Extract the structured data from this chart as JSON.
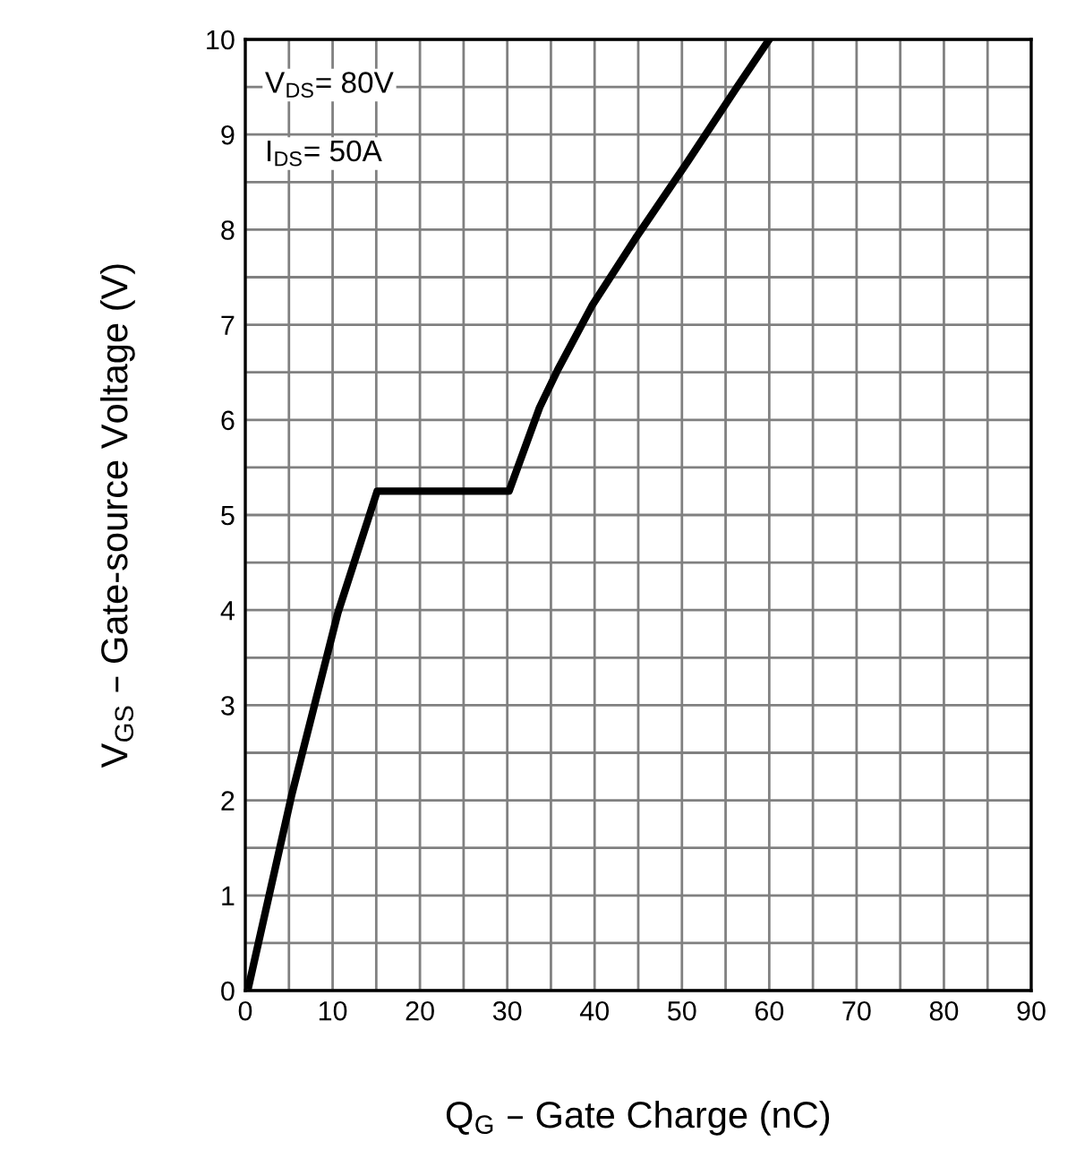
{
  "chart_data": {
    "type": "line",
    "xlabel": "Q$_{G}$ – Gate Charge (nC)",
    "ylabel": "V$_{GS}$ – Gate-source Voltage (V)",
    "series": [
      {
        "color": "#000000",
        "x": [
          0.4,
          5.3,
          10.6,
          15.1,
          30.2,
          33.7,
          35.8,
          39.7,
          44.7,
          50.7,
          56.1,
          60.0
        ],
        "values": [
          0.05,
          2.05,
          3.97,
          5.25,
          5.25,
          6.13,
          6.53,
          7.2,
          7.91,
          8.72,
          9.47,
          10.0
        ]
      }
    ],
    "xlim": [
      0,
      90
    ],
    "ylim": [
      0,
      10
    ],
    "xticks": [
      0,
      {
        "value": 5,
        "label": null
      },
      10,
      {
        "value": 15,
        "label": null
      },
      20,
      {
        "value": 25,
        "label": null
      },
      30,
      {
        "value": 35,
        "label": null
      },
      40,
      {
        "value": 45,
        "label": null
      },
      50,
      {
        "value": 55,
        "label": null
      },
      60,
      {
        "value": 65,
        "label": null
      },
      70,
      {
        "value": 75,
        "label": null
      },
      80,
      {
        "value": 85,
        "label": null
      },
      90
    ],
    "yticks": [
      0,
      {
        "value": 0.5,
        "label": null
      },
      1,
      {
        "value": 1.5,
        "label": null
      },
      2,
      {
        "value": 2.5,
        "label": null
      },
      3,
      {
        "value": 3.5,
        "label": null
      },
      4,
      {
        "value": 4.5,
        "label": null
      },
      5,
      {
        "value": 5.5,
        "label": null
      },
      6,
      {
        "value": 6.5,
        "label": null
      },
      7,
      {
        "value": 7.5,
        "label": null
      },
      8,
      {
        "value": 8.5,
        "label": null
      },
      9,
      {
        "value": 9.5,
        "label": null
      },
      10
    ],
    "grid": true,
    "marker": "none",
    "line_style": "solid",
    "annotations": [
      "V$_{DS}$= 80V",
      "I$_{DS}$= 50A"
    ]
  }
}
